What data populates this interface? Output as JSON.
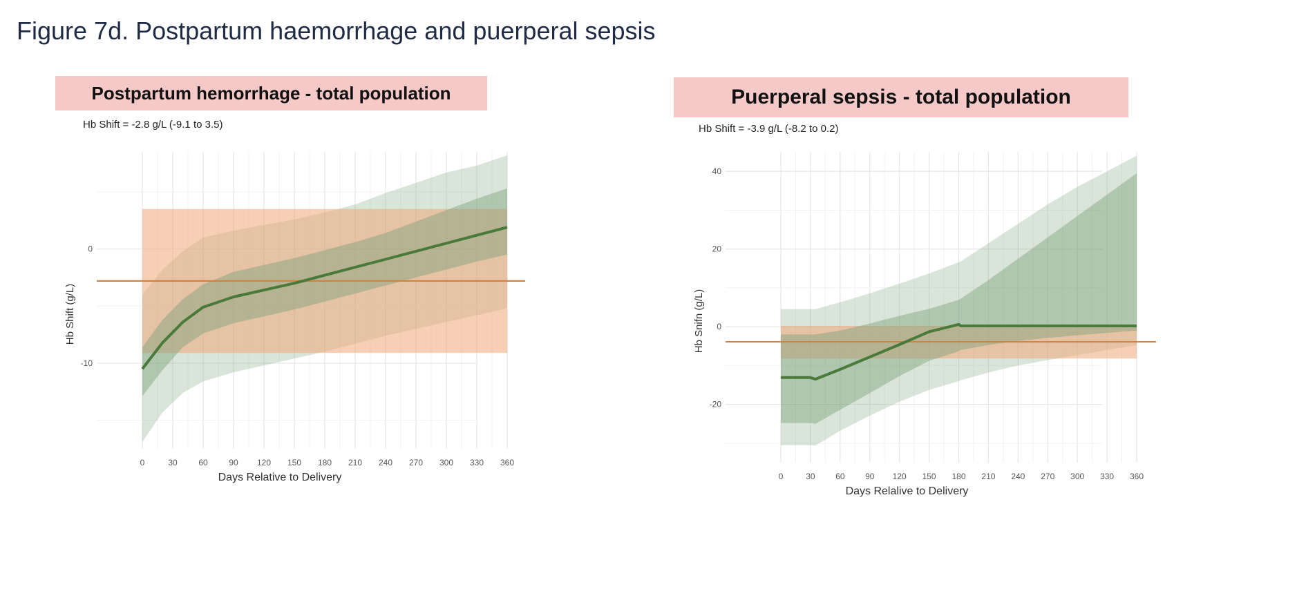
{
  "figure_title": "Figure 7d. Postpartum haemorrhage and puerperal sepsis",
  "chart_data": [
    {
      "type": "line",
      "title": "Postpartum hemorrhage - total population",
      "subtitle": "Hb Shift = -2.8 g/L (-9.1 to 3.5)",
      "xlabel": "Days Relative to Delivery",
      "ylabel": "Hb Shift (g/L)",
      "xlim": [
        0,
        360
      ],
      "ylim": [
        -17.5,
        8.5
      ],
      "xticks": [
        0,
        30,
        60,
        90,
        120,
        150,
        180,
        210,
        240,
        270,
        300,
        330,
        360
      ],
      "yticks": [
        -10,
        0
      ],
      "grid": true,
      "colors": {
        "trajectory": "#4a7a3a",
        "trajectory_band": "#7aa07a",
        "overall_line": "#d4823f",
        "overall_band": "#f0a878"
      },
      "overall_shift": {
        "value": -2.8,
        "lower": -9.1,
        "upper": 3.5
      },
      "series": [
        {
          "x": [
            0,
            20,
            40,
            60,
            90,
            120,
            150,
            180,
            210,
            240,
            270,
            300,
            330,
            360
          ],
          "y": [
            -10.5,
            -8.2,
            -6.4,
            -5.1,
            -4.2,
            -3.6,
            -3.0,
            -2.3,
            -1.6,
            -0.9,
            -0.2,
            0.5,
            1.2,
            1.9
          ],
          "ci80_lower": [
            -12.9,
            -10.6,
            -8.6,
            -7.4,
            -6.5,
            -5.9,
            -5.3,
            -4.6,
            -3.9,
            -3.2,
            -2.5,
            -1.8,
            -1.1,
            -0.5
          ],
          "ci80_upper": [
            -8.6,
            -6.2,
            -4.4,
            -3.1,
            -2.0,
            -1.4,
            -0.8,
            -0.1,
            0.6,
            1.4,
            2.4,
            3.4,
            4.4,
            5.3
          ],
          "ci95_lower": [
            -16.9,
            -14.3,
            -12.6,
            -11.6,
            -10.8,
            -10.2,
            -9.6,
            -9.0,
            -8.3,
            -7.6,
            -7.0,
            -6.4,
            -5.8,
            -5.2
          ],
          "ci95_upper": [
            -4.0,
            -1.8,
            -0.2,
            1.0,
            1.6,
            2.1,
            2.6,
            3.2,
            3.9,
            4.9,
            5.8,
            6.7,
            7.3,
            8.2
          ]
        }
      ]
    },
    {
      "type": "line",
      "title": "Puerperal sepsis - total population",
      "subtitle": "Hb Shift = -3.9 g/L (-8.2 to 0.2)",
      "xlabel": "Days Relalive to Delivery",
      "ylabel": "Hb Snifn (g/L)",
      "xlim": [
        0,
        360
      ],
      "ylim": [
        -35,
        45
      ],
      "xticks": [
        0,
        30,
        60,
        90,
        120,
        150,
        180,
        210,
        240,
        270,
        300,
        330,
        360
      ],
      "yticks": [
        -20,
        0,
        20,
        40
      ],
      "grid": true,
      "colors": {
        "trajectory": "#4a7a3a",
        "trajectory_band": "#7aa07a",
        "overall_line": "#d4823f",
        "overall_band": "#f0a878"
      },
      "overall_shift": {
        "value": -3.9,
        "lower": -8.2,
        "upper": 0.2
      },
      "series": [
        {
          "x": [
            0,
            30,
            35,
            60,
            90,
            120,
            150,
            180,
            182,
            210,
            240,
            270,
            300,
            330,
            360
          ],
          "y": [
            -13.1,
            -13.1,
            -13.5,
            -11.0,
            -7.8,
            -4.6,
            -1.3,
            0.6,
            0.2,
            0.2,
            0.2,
            0.2,
            0.2,
            0.2,
            0.2
          ],
          "ci80_lower": [
            -24.8,
            -24.8,
            -25.0,
            -21.4,
            -17.1,
            -12.7,
            -8.8,
            -6.3,
            -6.0,
            -4.7,
            -3.7,
            -2.9,
            -2.2,
            -1.6,
            -1.0
          ],
          "ci80_upper": [
            -2.0,
            -2.0,
            -2.0,
            -1.0,
            0.8,
            2.8,
            4.6,
            6.9,
            7.2,
            12.0,
            17.5,
            23.0,
            28.5,
            34.0,
            39.5
          ],
          "ci95_lower": [
            -30.5,
            -30.5,
            -30.6,
            -26.8,
            -22.9,
            -19.3,
            -16.3,
            -14.0,
            -13.8,
            -11.8,
            -10.0,
            -8.6,
            -7.3,
            -6.0,
            -4.8
          ],
          "ci95_upper": [
            4.5,
            4.5,
            4.5,
            6.3,
            8.6,
            11.1,
            13.7,
            16.6,
            16.8,
            21.5,
            26.5,
            31.5,
            36.0,
            40.0,
            44.0
          ]
        }
      ]
    }
  ]
}
